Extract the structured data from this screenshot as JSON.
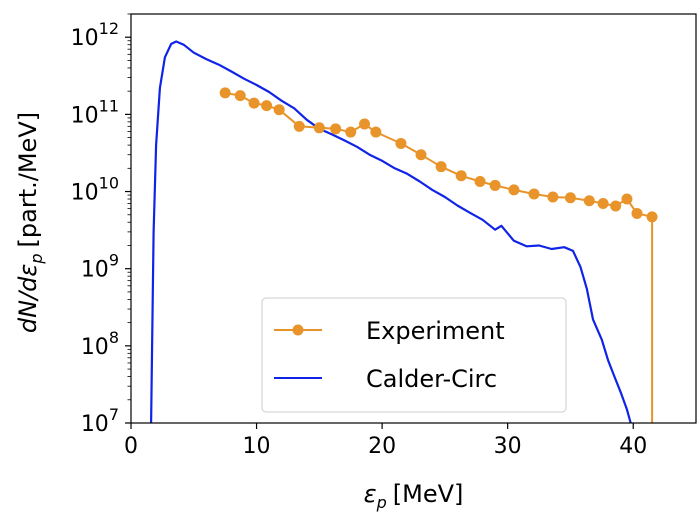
{
  "chart_data": {
    "type": "line",
    "xlabel_symbol": "ε",
    "xlabel_sub": "p",
    "xlabel_unit": "[MeV]",
    "ylabel_prefix": "dN/dε",
    "ylabel_sub": "p",
    "ylabel_unit": "[part./MeV]",
    "xlim": [
      0,
      45
    ],
    "ylim": [
      10000000,
      2000000000000
    ],
    "yscale": "log",
    "x_ticks": [
      0,
      10,
      20,
      30,
      40
    ],
    "y_ticks": [
      {
        "value": 10000000,
        "base": "10",
        "exp": "7"
      },
      {
        "value": 100000000,
        "base": "10",
        "exp": "8"
      },
      {
        "value": 1000000000,
        "base": "10",
        "exp": "9"
      },
      {
        "value": 10000000000,
        "base": "10",
        "exp": "10"
      },
      {
        "value": 100000000000,
        "base": "10",
        "exp": "11"
      },
      {
        "value": 1000000000000,
        "base": "10",
        "exp": "12"
      }
    ],
    "legend_position": "lower-center",
    "series": [
      {
        "name": "Experiment",
        "color": "#e8942a",
        "marker": "circle",
        "points": [
          [
            7.5,
            190000000000.0
          ],
          [
            8.7,
            175000000000.0
          ],
          [
            9.8,
            140000000000.0
          ],
          [
            10.8,
            130000000000.0
          ],
          [
            11.8,
            115000000000.0
          ],
          [
            13.4,
            70000000000.0
          ],
          [
            15.0,
            67000000000.0
          ],
          [
            16.3,
            65000000000.0
          ],
          [
            17.5,
            59000000000.0
          ],
          [
            18.6,
            75000000000.0
          ],
          [
            19.5,
            59000000000.0
          ],
          [
            21.5,
            42000000000.0
          ],
          [
            23.1,
            30000000000.0
          ],
          [
            24.7,
            21000000000.0
          ],
          [
            26.3,
            16000000000.0
          ],
          [
            27.8,
            13500000000.0
          ],
          [
            29.0,
            12000000000.0
          ],
          [
            30.5,
            10500000000.0
          ],
          [
            32.1,
            9300000000.0
          ],
          [
            33.6,
            8500000000.0
          ],
          [
            35.0,
            8300000000.0
          ],
          [
            36.5,
            7600000000.0
          ],
          [
            37.6,
            7000000000.0
          ],
          [
            38.6,
            6500000000.0
          ],
          [
            39.5,
            8000000000.0
          ],
          [
            40.3,
            5200000000.0
          ],
          [
            41.5,
            4700000000.0
          ]
        ],
        "drop_to_floor_at": 41.5
      },
      {
        "name": "Calder-Circ",
        "color": "#0f24e6",
        "marker": "none",
        "points": [
          [
            1.6,
            10000000.0
          ],
          [
            1.8,
            3000000000.0
          ],
          [
            2.0,
            40000000000.0
          ],
          [
            2.3,
            220000000000.0
          ],
          [
            2.7,
            550000000000.0
          ],
          [
            3.2,
            820000000000.0
          ],
          [
            3.6,
            880000000000.0
          ],
          [
            4.2,
            800000000000.0
          ],
          [
            5.0,
            630000000000.0
          ],
          [
            6.0,
            520000000000.0
          ],
          [
            7.0,
            440000000000.0
          ],
          [
            8.0,
            360000000000.0
          ],
          [
            9.0,
            290000000000.0
          ],
          [
            10.0,
            240000000000.0
          ],
          [
            11.0,
            195000000000.0
          ],
          [
            12.0,
            150000000000.0
          ],
          [
            13.0,
            120000000000.0
          ],
          [
            14.0,
            85000000000.0
          ],
          [
            15.0,
            65000000000.0
          ],
          [
            16.0,
            55000000000.0
          ],
          [
            17.0,
            46000000000.0
          ],
          [
            18.0,
            38000000000.0
          ],
          [
            19.0,
            30000000000.0
          ],
          [
            20.0,
            25000000000.0
          ],
          [
            21.0,
            20000000000.0
          ],
          [
            22.0,
            17000000000.0
          ],
          [
            23.0,
            13500000000.0
          ],
          [
            24.0,
            10500000000.0
          ],
          [
            25.0,
            8500000000.0
          ],
          [
            26.0,
            6600000000.0
          ],
          [
            27.0,
            5300000000.0
          ],
          [
            28.0,
            4300000000.0
          ],
          [
            29.0,
            3200000000.0
          ],
          [
            29.5,
            3600000000.0
          ],
          [
            30.5,
            2300000000.0
          ],
          [
            31.5,
            1950000000.0
          ],
          [
            32.5,
            2000000000.0
          ],
          [
            33.5,
            1800000000.0
          ],
          [
            34.5,
            1900000000.0
          ],
          [
            35.2,
            1700000000.0
          ],
          [
            35.8,
            1050000000.0
          ],
          [
            36.3,
            550000000.0
          ],
          [
            36.8,
            220000000.0
          ],
          [
            37.5,
            120000000.0
          ],
          [
            38.0,
            65000000.0
          ],
          [
            38.5,
            40000000.0
          ],
          [
            39.0,
            25000000.0
          ],
          [
            39.5,
            15000000.0
          ],
          [
            39.8,
            10000000.0
          ]
        ]
      }
    ]
  }
}
